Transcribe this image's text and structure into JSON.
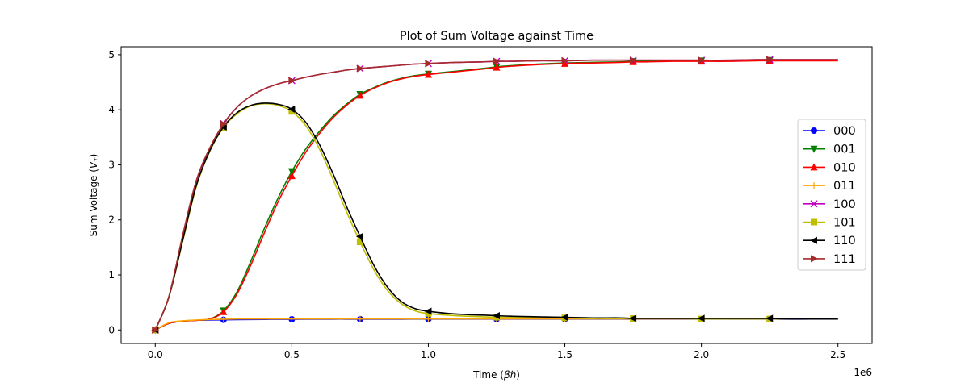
{
  "chart_data": {
    "type": "line",
    "title": "Plot of Sum Voltage against Time",
    "xlabel": "Time (βℏ)",
    "ylabel": "Sum Voltage (V_T)",
    "xlim": [
      -125000,
      2625000
    ],
    "ylim": [
      -0.245,
      5.145
    ],
    "x_offset_text": "1e6",
    "x_ticks": [
      0,
      500000,
      1000000,
      1500000,
      2000000,
      2500000
    ],
    "x_tick_labels": [
      "0.0",
      "0.5",
      "1.0",
      "1.5",
      "2.0",
      "2.5"
    ],
    "y_ticks": [
      0,
      1,
      2,
      3,
      4,
      5
    ],
    "y_tick_labels": [
      "0",
      "1",
      "2",
      "3",
      "4",
      "5"
    ],
    "grid": false,
    "legend_position": "right",
    "x": [
      0,
      50000,
      100000,
      150000,
      200000,
      250000,
      300000,
      350000,
      400000,
      450000,
      500000,
      550000,
      600000,
      650000,
      700000,
      750000,
      800000,
      850000,
      900000,
      950000,
      1000000,
      1100000,
      1200000,
      1250000,
      1300000,
      1400000,
      1500000,
      1600000,
      1700000,
      1750000,
      1800000,
      1900000,
      2000000,
      2100000,
      2200000,
      2250000,
      2300000,
      2400000,
      2500000
    ],
    "marker_x": [
      0,
      250000,
      500000,
      750000,
      1000000,
      1250000,
      1500000,
      1750000,
      2000000,
      2250000
    ],
    "series": [
      {
        "name": "000",
        "color": "#0000ff",
        "marker": "circle",
        "values": [
          0.0,
          0.12,
          0.16,
          0.175,
          0.18,
          0.185,
          0.188,
          0.19,
          0.192,
          0.193,
          0.194,
          0.195,
          0.195,
          0.196,
          0.196,
          0.196,
          0.196,
          0.196,
          0.196,
          0.197,
          0.197,
          0.197,
          0.197,
          0.197,
          0.197,
          0.197,
          0.197,
          0.197,
          0.197,
          0.197,
          0.197,
          0.197,
          0.197,
          0.197,
          0.197,
          0.197,
          0.197,
          0.197,
          0.197
        ]
      },
      {
        "name": "001",
        "color": "#008000",
        "marker": "triangle-down",
        "values": [
          0.0,
          0.12,
          0.16,
          0.175,
          0.2,
          0.35,
          0.7,
          1.25,
          1.85,
          2.4,
          2.88,
          3.28,
          3.6,
          3.88,
          4.1,
          4.28,
          4.4,
          4.5,
          4.57,
          4.62,
          4.65,
          4.7,
          4.75,
          4.78,
          4.8,
          4.83,
          4.85,
          4.86,
          4.87,
          4.88,
          4.88,
          4.89,
          4.89,
          4.89,
          4.9,
          4.9,
          4.9,
          4.9,
          4.9
        ]
      },
      {
        "name": "010",
        "color": "#ff0000",
        "marker": "triangle-up",
        "values": [
          0.0,
          0.12,
          0.16,
          0.175,
          0.2,
          0.33,
          0.66,
          1.18,
          1.77,
          2.33,
          2.8,
          3.22,
          3.56,
          3.85,
          4.08,
          4.26,
          4.39,
          4.49,
          4.56,
          4.61,
          4.64,
          4.69,
          4.74,
          4.77,
          4.79,
          4.82,
          4.84,
          4.85,
          4.86,
          4.87,
          4.87,
          4.88,
          4.88,
          4.88,
          4.89,
          4.89,
          4.89,
          4.89,
          4.89
        ]
      },
      {
        "name": "011",
        "color": "#ffa500",
        "marker": "plus",
        "values": [
          0.0,
          0.13,
          0.165,
          0.18,
          0.19,
          0.195,
          0.2,
          0.2,
          0.2,
          0.2,
          0.2,
          0.2,
          0.2,
          0.2,
          0.2,
          0.2,
          0.2,
          0.2,
          0.2,
          0.2,
          0.2,
          0.2,
          0.2,
          0.2,
          0.2,
          0.2,
          0.2,
          0.2,
          0.2,
          0.2,
          0.2,
          0.2,
          0.2,
          0.2,
          0.2,
          0.2,
          0.2,
          0.2,
          0.2
        ]
      },
      {
        "name": "100",
        "color": "#bf00bf",
        "marker": "x",
        "values": [
          0.0,
          0.6,
          1.7,
          2.7,
          3.3,
          3.75,
          4.05,
          4.25,
          4.38,
          4.47,
          4.53,
          4.59,
          4.64,
          4.68,
          4.72,
          4.75,
          4.77,
          4.79,
          4.81,
          4.83,
          4.84,
          4.86,
          4.87,
          4.88,
          4.88,
          4.89,
          4.89,
          4.9,
          4.9,
          4.9,
          4.9,
          4.9,
          4.9,
          4.9,
          4.91,
          4.91,
          4.91,
          4.91,
          4.91
        ]
      },
      {
        "name": "101",
        "color": "#bfbf00",
        "marker": "square",
        "values": [
          0.0,
          0.6,
          1.6,
          2.6,
          3.25,
          3.68,
          3.93,
          4.07,
          4.11,
          4.08,
          3.97,
          3.72,
          3.3,
          2.75,
          2.15,
          1.6,
          1.1,
          0.72,
          0.48,
          0.35,
          0.3,
          0.26,
          0.24,
          0.23,
          0.23,
          0.22,
          0.22,
          0.21,
          0.21,
          0.21,
          0.21,
          0.21,
          0.2,
          0.2,
          0.2,
          0.2,
          0.2,
          0.2,
          0.2
        ]
      },
      {
        "name": "110",
        "color": "#000000",
        "marker": "triangle-left",
        "values": [
          0.0,
          0.6,
          1.62,
          2.62,
          3.26,
          3.69,
          3.95,
          4.08,
          4.12,
          4.1,
          4.01,
          3.78,
          3.38,
          2.85,
          2.25,
          1.7,
          1.18,
          0.78,
          0.52,
          0.39,
          0.34,
          0.29,
          0.27,
          0.26,
          0.25,
          0.24,
          0.23,
          0.22,
          0.22,
          0.21,
          0.21,
          0.21,
          0.21,
          0.21,
          0.21,
          0.21,
          0.2,
          0.2,
          0.2
        ]
      },
      {
        "name": "111",
        "color": "#a52a2a",
        "marker": "triangle-right",
        "values": [
          0.0,
          0.61,
          1.71,
          2.71,
          3.31,
          3.74,
          4.05,
          4.25,
          4.38,
          4.47,
          4.53,
          4.59,
          4.64,
          4.68,
          4.72,
          4.75,
          4.77,
          4.79,
          4.81,
          4.83,
          4.84,
          4.86,
          4.87,
          4.88,
          4.88,
          4.89,
          4.89,
          4.9,
          4.9,
          4.9,
          4.9,
          4.9,
          4.9,
          4.9,
          4.91,
          4.91,
          4.91,
          4.91,
          4.91
        ]
      }
    ]
  }
}
